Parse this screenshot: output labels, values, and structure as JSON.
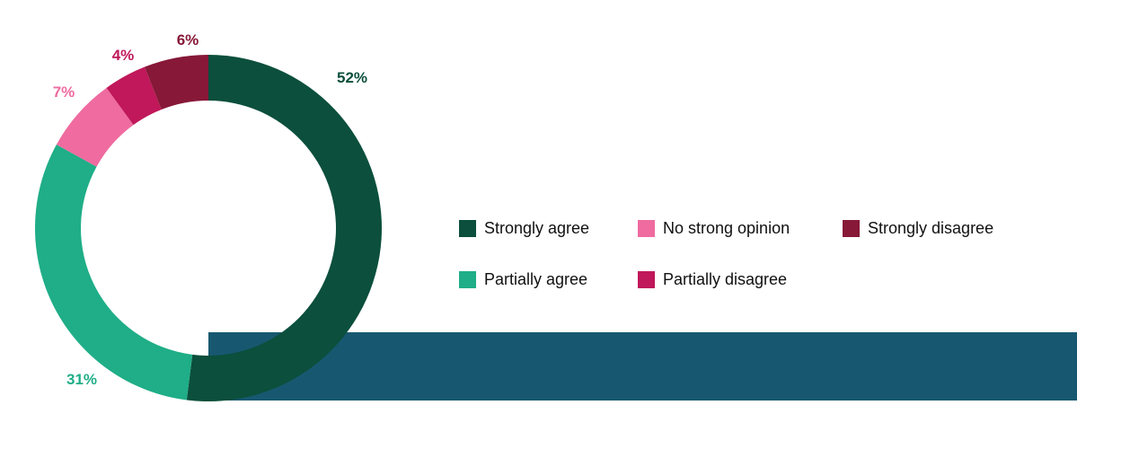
{
  "chart_data": {
    "type": "pie",
    "donut": true,
    "slices": [
      {
        "name": "Strongly agree",
        "value": 52,
        "label": "52%",
        "color": "#0b4f3c"
      },
      {
        "name": "Partially agree",
        "value": 31,
        "label": "31%",
        "color": "#1fae87"
      },
      {
        "name": "No strong opinion",
        "value": 7,
        "label": "7%",
        "color": "#ef6ba0"
      },
      {
        "name": "Partially disagree",
        "value": 4,
        "label": "4%",
        "color": "#c0185a"
      },
      {
        "name": "Strongly disagree",
        "value": 6,
        "label": "6%",
        "color": "#871838"
      }
    ],
    "legend": {
      "placement": "right",
      "items": [
        {
          "label": "Strongly agree",
          "color": "#0b4f3c"
        },
        {
          "label": "No strong opinion",
          "color": "#ef6ba0"
        },
        {
          "label": "Strongly disagree",
          "color": "#871838"
        },
        {
          "label": "Partially agree",
          "color": "#1fae87"
        },
        {
          "label": "Partially disagree",
          "color": "#c0185a"
        }
      ]
    }
  },
  "colors": {
    "band": "#175870",
    "label_strongly_agree": "#0b4f3c",
    "label_partially_agree": "#1fae87",
    "label_no_opinion": "#ef6ba0",
    "label_partially_disagree": "#c0185a",
    "label_strongly_disagree": "#871838"
  }
}
